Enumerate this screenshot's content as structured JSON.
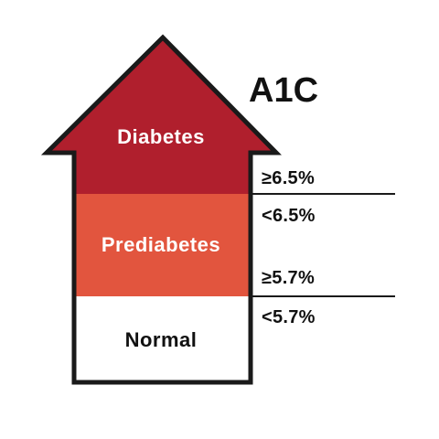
{
  "title": "A1C",
  "zones": [
    {
      "label": "Diabetes",
      "color": "#b01f2d",
      "text_color": "#ffffff"
    },
    {
      "label": "Prediabetes",
      "color": "#e2553e",
      "text_color": "#ffffff"
    },
    {
      "label": "Normal",
      "color": "#ffffff",
      "text_color": "#111111"
    }
  ],
  "thresholds": {
    "diabetes_min": "≥6.5%",
    "prediabetes_max": "<6.5%",
    "prediabetes_min": "≥5.7%",
    "normal_max": "<5.7%"
  },
  "outline_color": "#1a1a1a"
}
